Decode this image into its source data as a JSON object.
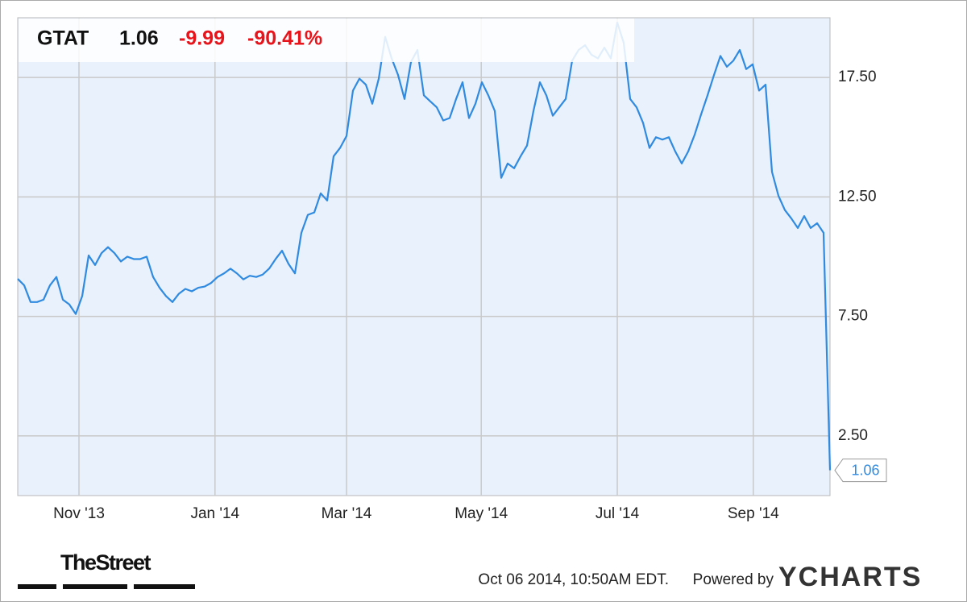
{
  "chart_data": {
    "type": "line",
    "quote": {
      "ticker": "GTAT",
      "price": 1.06,
      "change": -9.99,
      "change_percent": "-90.41%"
    },
    "series": [
      {
        "name": "GTAT",
        "color": "#2f8ae0",
        "values": [
          9.07,
          8.8,
          8.1,
          8.1,
          8.2,
          8.8,
          9.15,
          8.2,
          8.0,
          7.6,
          8.35,
          10.05,
          9.65,
          10.15,
          10.4,
          10.15,
          9.8,
          10.0,
          9.9,
          9.9,
          10.0,
          9.15,
          8.7,
          8.35,
          8.1,
          8.45,
          8.65,
          8.55,
          8.7,
          8.75,
          8.9,
          9.15,
          9.3,
          9.5,
          9.3,
          9.05,
          9.2,
          9.15,
          9.25,
          9.5,
          9.9,
          10.25,
          9.7,
          9.3,
          11.0,
          11.75,
          11.85,
          12.65,
          12.35,
          14.2,
          14.55,
          15.05,
          16.95,
          17.45,
          17.2,
          16.4,
          17.45,
          19.2,
          18.3,
          17.6,
          16.6,
          18.15,
          18.65,
          16.75,
          16.5,
          16.25,
          15.7,
          15.8,
          16.6,
          17.3,
          15.8,
          16.4,
          17.3,
          16.75,
          16.1,
          13.3,
          13.9,
          13.7,
          14.2,
          14.65,
          16.1,
          17.3,
          16.75,
          15.9,
          16.25,
          16.6,
          18.2,
          18.65,
          18.85,
          18.45,
          18.3,
          18.75,
          18.3,
          19.8,
          18.95,
          16.6,
          16.25,
          15.6,
          14.55,
          15.0,
          14.9,
          15.0,
          14.4,
          13.9,
          14.4,
          15.1,
          15.95,
          16.75,
          17.6,
          18.4,
          17.95,
          18.2,
          18.65,
          17.85,
          18.05,
          16.95,
          17.2,
          13.55,
          12.55,
          11.95,
          11.6,
          11.2,
          11.7,
          11.2,
          11.4,
          11.0,
          1.06
        ]
      }
    ],
    "xlim": [
      0,
      126
    ],
    "xticks": [
      {
        "value": 9.5,
        "label": "Nov '13"
      },
      {
        "value": 30.6,
        "label": "Jan '14"
      },
      {
        "value": 51,
        "label": "Mar '14"
      },
      {
        "value": 71.9,
        "label": "May '14"
      },
      {
        "value": 93,
        "label": "Jul '14"
      },
      {
        "value": 114.1,
        "label": "Sep '14"
      }
    ],
    "ylim": [
      0,
      20
    ],
    "yticks": [
      {
        "value": 2.5,
        "label": "2.50"
      },
      {
        "value": 7.5,
        "label": "7.50"
      },
      {
        "value": 12.5,
        "label": "12.50"
      },
      {
        "value": 17.5,
        "label": "17.50"
      }
    ],
    "grid": true,
    "source": "TheStreet",
    "timestamp": "Oct 06 2014, 10:50AM EDT.",
    "powered_by": "Powered by",
    "brand": "YCHARTS"
  }
}
